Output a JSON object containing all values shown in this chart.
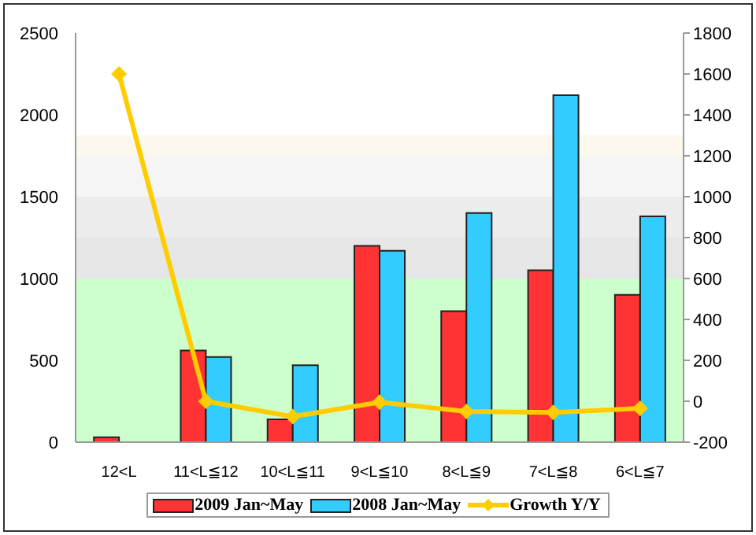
{
  "chart_data": {
    "type": "bar",
    "categories": [
      "12<L",
      "11<L≦12",
      "10<L≦11",
      "9<L≦10",
      "8<L≦9",
      "7<L≦8",
      "6<L≦7"
    ],
    "series": [
      {
        "name": "2009 Jan~May",
        "color": "#ff3333",
        "values": [
          30,
          560,
          140,
          1200,
          800,
          1050,
          900
        ]
      },
      {
        "name": "2008 Jan~May",
        "color": "#33ccff",
        "values": [
          null,
          520,
          470,
          1170,
          1400,
          2120,
          1380
        ]
      },
      {
        "name": "Growth Y/Y",
        "type": "line",
        "axis": "y2",
        "color": "#ffcc00",
        "values": [
          1600,
          0,
          -75,
          -5,
          -50,
          -55,
          -35
        ]
      }
    ],
    "ylim": [
      0,
      2500
    ],
    "yticks": [
      0,
      500,
      1000,
      1500,
      2000,
      2500
    ],
    "y2lim": [
      -200,
      1800
    ],
    "y2ticks": [
      -200,
      0,
      200,
      400,
      600,
      800,
      1000,
      1200,
      1400,
      1600,
      1800
    ],
    "bands": [
      {
        "axis": "y",
        "from": 0,
        "to": 1000,
        "color": "#ccffcc"
      },
      {
        "axis": "y",
        "from": 1000,
        "to": 1250,
        "color": "#e6e6e6"
      },
      {
        "axis": "y",
        "from": 1250,
        "to": 1500,
        "color": "#ececec"
      },
      {
        "axis": "y",
        "from": 1500,
        "to": 1750,
        "color": "#f5f5f5"
      },
      {
        "axis": "y",
        "from": 1750,
        "to": 1875,
        "color": "#fdf8ee"
      }
    ],
    "marker": "diamond",
    "legend": "bottom"
  }
}
